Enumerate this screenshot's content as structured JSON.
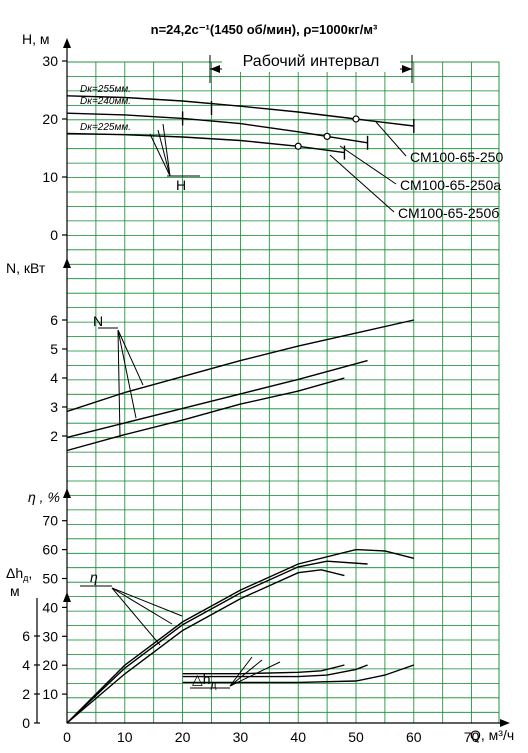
{
  "title": "n=24,2с⁻¹(1450 об/мин), ρ=1000кг/м³",
  "work_interval_label": "Рабочий интервал",
  "x_axis": {
    "label": "Q, м³/ч",
    "ticks": [
      "0",
      "10",
      "20",
      "30",
      "40",
      "50",
      "60",
      "70"
    ]
  },
  "panels": {
    "head": {
      "label": "H, м",
      "ticks": [
        "0",
        "10",
        "20",
        "30"
      ],
      "callout": "H"
    },
    "power": {
      "label": "N, кВт",
      "ticks": [
        "2",
        "3",
        "4",
        "5",
        "6"
      ],
      "callout": "N"
    },
    "eff": {
      "label": "η , %",
      "ticks": [
        "10",
        "20",
        "30",
        "40",
        "50",
        "60",
        "70"
      ],
      "callout": "η"
    },
    "npsh": {
      "label": "Δhд, м",
      "ticks": [
        "0",
        "2",
        "4",
        "6"
      ],
      "callout": "Δhд"
    }
  },
  "models": [
    "СМ100-65-250",
    "СМ100-65-250а",
    "СМ100-65-250б"
  ],
  "diameters": [
    "Dк=255мм.",
    "Dк=240мм.",
    "Dк=225мм."
  ],
  "chart_data": [
    {
      "type": "line",
      "title": "H, м",
      "xlabel": "Q, м³/ч",
      "ylabel": "H, м",
      "xlim": [
        0,
        80
      ],
      "ylim": [
        0,
        30
      ],
      "series": [
        {
          "name": "Dк=255мм. (СМ100-65-250)",
          "x": [
            0,
            10,
            20,
            30,
            40,
            50,
            60
          ],
          "y": [
            24,
            23.7,
            23.1,
            22.2,
            21.2,
            20,
            18.8
          ]
        },
        {
          "name": "Dк=240мм. (СМ100-65-250а)",
          "x": [
            0,
            10,
            20,
            30,
            40,
            45,
            52
          ],
          "y": [
            21,
            20.7,
            20.1,
            19.2,
            17.8,
            17,
            15.9
          ]
        },
        {
          "name": "Dк=225мм. (СМ100-65-250б)",
          "x": [
            0,
            10,
            20,
            30,
            40,
            48
          ],
          "y": [
            17.5,
            17.3,
            16.9,
            16.3,
            15.3,
            14.2
          ]
        }
      ],
      "markers": [
        {
          "x": 50,
          "y": 20
        },
        {
          "x": 45,
          "y": 17
        },
        {
          "x": 40,
          "y": 15.3
        }
      ],
      "work_interval": [
        25,
        60
      ]
    },
    {
      "type": "line",
      "title": "N, кВт",
      "xlabel": "Q, м³/ч",
      "ylabel": "N, кВт",
      "xlim": [
        0,
        80
      ],
      "ylim": [
        1,
        7
      ],
      "series": [
        {
          "name": "Dк=255мм.",
          "x": [
            0,
            10,
            20,
            30,
            40,
            50,
            60
          ],
          "y": [
            2.85,
            3.5,
            4.05,
            4.6,
            5.1,
            5.55,
            6
          ]
        },
        {
          "name": "Dк=240мм.",
          "x": [
            0,
            10,
            20,
            30,
            40,
            52
          ],
          "y": [
            1.95,
            2.45,
            2.95,
            3.45,
            3.95,
            4.6
          ]
        },
        {
          "name": "Dк=225мм.",
          "x": [
            0,
            10,
            20,
            30,
            40,
            48
          ],
          "y": [
            1.5,
            2.05,
            2.55,
            3.1,
            3.55,
            4.0
          ]
        }
      ]
    },
    {
      "type": "line",
      "title": "η , %",
      "xlabel": "Q, м³/ч",
      "ylabel": "η , %",
      "xlim": [
        0,
        80
      ],
      "ylim": [
        0,
        80
      ],
      "series": [
        {
          "name": "Dк=255мм.",
          "x": [
            0,
            10,
            20,
            30,
            40,
            50,
            55,
            60
          ],
          "y": [
            0,
            20,
            35,
            46,
            55,
            60,
            59.5,
            57
          ]
        },
        {
          "name": "Dк=240мм.",
          "x": [
            0,
            10,
            20,
            30,
            40,
            45,
            52
          ],
          "y": [
            0,
            19,
            34,
            45,
            54,
            56,
            55
          ]
        },
        {
          "name": "Dк=225мм.",
          "x": [
            0,
            10,
            20,
            30,
            40,
            44,
            48
          ],
          "y": [
            0,
            17,
            32,
            43,
            52,
            53,
            51
          ]
        }
      ]
    },
    {
      "type": "line",
      "title": "Δhд, м",
      "xlabel": "Q, м³/ч",
      "ylabel": "Δhд, м",
      "xlim": [
        0,
        80
      ],
      "ylim": [
        0,
        8
      ],
      "series": [
        {
          "name": "Dк=255мм.",
          "x": [
            20,
            30,
            40,
            50,
            55,
            60
          ],
          "y": [
            2.8,
            2.8,
            2.8,
            2.9,
            3.3,
            4.0
          ]
        },
        {
          "name": "Dк=240мм.",
          "x": [
            20,
            30,
            40,
            45,
            50,
            52
          ],
          "y": [
            3.2,
            3.2,
            3.2,
            3.3,
            3.7,
            4.0
          ]
        },
        {
          "name": "Dк=225мм.",
          "x": [
            20,
            30,
            40,
            44,
            47,
            48
          ],
          "y": [
            3.4,
            3.4,
            3.5,
            3.6,
            3.9,
            4.0
          ]
        }
      ]
    }
  ]
}
